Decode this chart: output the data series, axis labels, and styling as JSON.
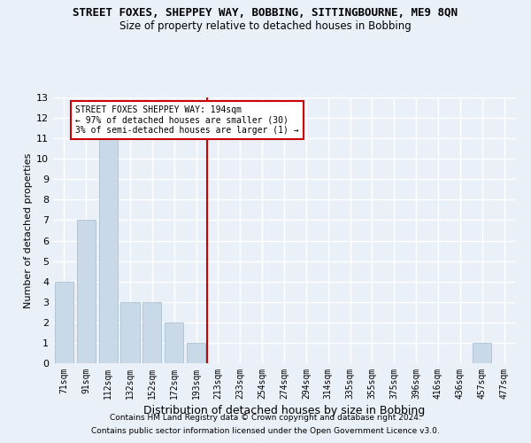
{
  "title": "STREET FOXES, SHEPPEY WAY, BOBBING, SITTINGBOURNE, ME9 8QN",
  "subtitle": "Size of property relative to detached houses in Bobbing",
  "xlabel": "Distribution of detached houses by size in Bobbing",
  "ylabel": "Number of detached properties",
  "categories": [
    "71sqm",
    "91sqm",
    "112sqm",
    "132sqm",
    "152sqm",
    "172sqm",
    "193sqm",
    "213sqm",
    "233sqm",
    "254sqm",
    "274sqm",
    "294sqm",
    "314sqm",
    "335sqm",
    "355sqm",
    "375sqm",
    "396sqm",
    "416sqm",
    "436sqm",
    "457sqm",
    "477sqm"
  ],
  "values": [
    4,
    7,
    11,
    3,
    3,
    2,
    1,
    0,
    0,
    0,
    0,
    0,
    0,
    0,
    0,
    0,
    0,
    0,
    0,
    1,
    0
  ],
  "bar_color": "#c9d9e8",
  "bar_edge_color": "#a0b8cc",
  "red_line_index": 6,
  "ylim": [
    0,
    13
  ],
  "yticks": [
    0,
    1,
    2,
    3,
    4,
    5,
    6,
    7,
    8,
    9,
    10,
    11,
    12,
    13
  ],
  "annotation_line1": "STREET FOXES SHEPPEY WAY: 194sqm",
  "annotation_line2": "← 97% of detached houses are smaller (30)",
  "annotation_line3": "3% of semi-detached houses are larger (1) →",
  "annotation_box_color": "#ffffff",
  "annotation_box_edge": "#cc0000",
  "footer1": "Contains HM Land Registry data © Crown copyright and database right 2024.",
  "footer2": "Contains public sector information licensed under the Open Government Licence v3.0.",
  "background_color": "#eaf0f8",
  "grid_color": "#ffffff",
  "title_fontsize": 9,
  "subtitle_fontsize": 8.5,
  "axis_label_fontsize": 8,
  "tick_fontsize": 7,
  "annotation_fontsize": 7,
  "footer_fontsize": 6.5
}
